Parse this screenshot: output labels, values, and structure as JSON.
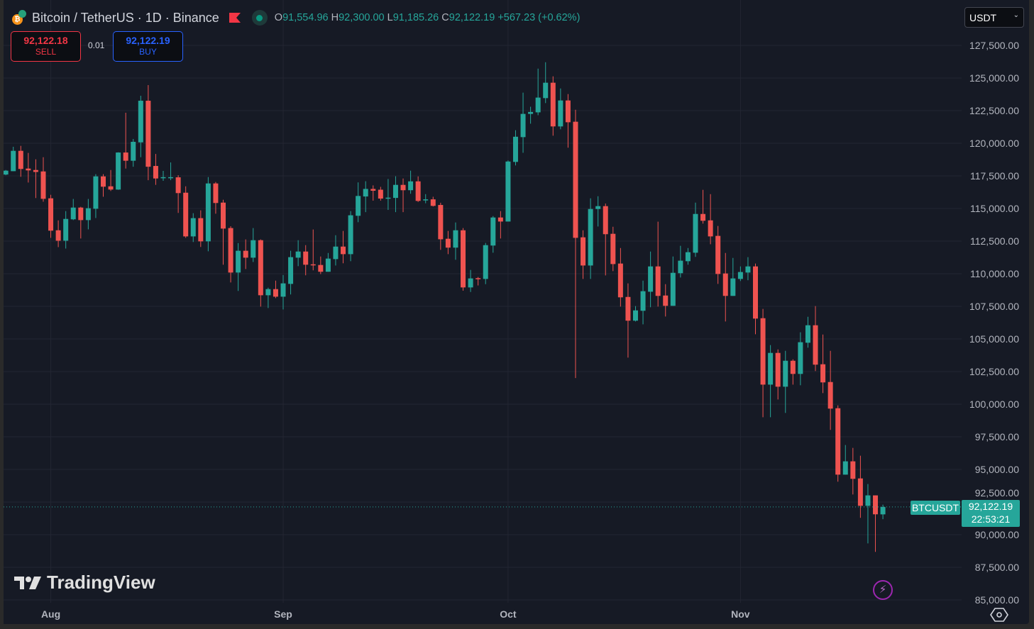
{
  "header": {
    "title": "Bitcoin / TetherUS · 1D · Binance",
    "ohlc": {
      "o_label": "O",
      "o": "91,554.96",
      "h_label": "H",
      "h": "92,300.00",
      "l_label": "L",
      "l": "91,185.26",
      "c_label": "C",
      "c": "92,122.19",
      "change": "+567.23 (+0.62%)"
    }
  },
  "trade": {
    "sell_price": "92,122.18",
    "sell_label": "SELL",
    "spread": "0.01",
    "buy_price": "92,122.19",
    "buy_label": "BUY"
  },
  "currency": {
    "selected": "USDT"
  },
  "price_tag": {
    "symbol": "BTCUSDT",
    "price": "92,122.19",
    "countdown": "22:53:21"
  },
  "branding": {
    "logo_text": "TradingView"
  },
  "colors": {
    "up": "#26a69a",
    "down": "#ef5350",
    "background": "#161a25",
    "grid": "#232632"
  },
  "chart_data": {
    "type": "candlestick",
    "title": "Bitcoin / TetherUS · 1D · Binance",
    "ylabel": "USDT",
    "ylim": [
      84780,
      130980
    ],
    "x_index_range": [
      -0.3,
      127.5
    ],
    "yticks": [
      {
        "value": 127500,
        "label": "127,500.00"
      },
      {
        "value": 125000,
        "label": "125,000.00"
      },
      {
        "value": 122500,
        "label": "122,500.00"
      },
      {
        "value": 120000,
        "label": "120,000.00"
      },
      {
        "value": 117500,
        "label": "117,500.00"
      },
      {
        "value": 115000,
        "label": "115,000.00"
      },
      {
        "value": 112500,
        "label": "112,500.00"
      },
      {
        "value": 110000,
        "label": "110,000.00"
      },
      {
        "value": 107500,
        "label": "107,500.00"
      },
      {
        "value": 105000,
        "label": "105,000.00"
      },
      {
        "value": 102500,
        "label": "102,500.00"
      },
      {
        "value": 100000,
        "label": "100,000.00"
      },
      {
        "value": 97500,
        "label": "97,500.00"
      },
      {
        "value": 95000,
        "label": "95,000.00"
      },
      {
        "value": 92500,
        "label": "92,500.00"
      },
      {
        "value": 90000,
        "label": "90,000.00"
      },
      {
        "value": 87500,
        "label": "87,500.00"
      },
      {
        "value": 85000,
        "label": "85,000.00"
      }
    ],
    "xticks": [
      {
        "index": 6,
        "label": "Aug"
      },
      {
        "index": 37,
        "label": "Sep"
      },
      {
        "index": 67,
        "label": "Oct"
      },
      {
        "index": 98,
        "label": "Nov"
      }
    ],
    "last_price": 92122.19,
    "ohlc_fields": [
      "open",
      "high",
      "low",
      "close"
    ],
    "candles": [
      [
        117600,
        117950,
        117550,
        117900
      ],
      [
        117860,
        119730,
        117860,
        119420
      ],
      [
        119420,
        119800,
        117430,
        118030
      ],
      [
        118060,
        119260,
        116990,
        117920
      ],
      [
        117950,
        118770,
        115800,
        117800
      ],
      [
        117840,
        118930,
        115520,
        115740
      ],
      [
        115780,
        116050,
        112750,
        113300
      ],
      [
        113330,
        114090,
        112040,
        112530
      ],
      [
        112530,
        114800,
        111930,
        114200
      ],
      [
        114170,
        115730,
        114110,
        115070
      ],
      [
        115070,
        115130,
        112700,
        114110
      ],
      [
        114110,
        115730,
        113400,
        115020
      ],
      [
        114980,
        117630,
        114270,
        117460
      ],
      [
        117460,
        117630,
        115900,
        116670
      ],
      [
        116700,
        117950,
        116340,
        116450
      ],
      [
        116450,
        119310,
        116430,
        119290
      ],
      [
        119290,
        122340,
        118060,
        118660
      ],
      [
        118660,
        120330,
        118200,
        120110
      ],
      [
        120070,
        123640,
        118930,
        123260
      ],
      [
        123260,
        124460,
        117170,
        118200
      ],
      [
        118260,
        119180,
        116810,
        117300
      ],
      [
        117350,
        117880,
        117120,
        117400
      ],
      [
        117350,
        118530,
        117170,
        117400
      ],
      [
        117390,
        117550,
        114660,
        116180
      ],
      [
        116210,
        116700,
        112750,
        112860
      ],
      [
        112860,
        114640,
        112430,
        114260
      ],
      [
        114260,
        114860,
        112050,
        112480
      ],
      [
        112480,
        117410,
        111720,
        116920
      ],
      [
        116920,
        117030,
        114600,
        115420
      ],
      [
        115450,
        115670,
        110690,
        113460
      ],
      [
        113500,
        113640,
        109330,
        110090
      ],
      [
        110090,
        112350,
        108680,
        111760
      ],
      [
        111760,
        112630,
        110360,
        111230
      ],
      [
        111230,
        113500,
        110900,
        112570
      ],
      [
        112570,
        112630,
        107480,
        108350
      ],
      [
        108350,
        108930,
        107370,
        108820
      ],
      [
        108820,
        109470,
        108130,
        108240
      ],
      [
        108240,
        109900,
        107260,
        109260
      ],
      [
        109220,
        111760,
        108410,
        111270
      ],
      [
        111230,
        112570,
        110580,
        111700
      ],
      [
        111700,
        112190,
        109880,
        110690
      ],
      [
        110720,
        113390,
        110260,
        110670
      ],
      [
        110670,
        111320,
        109970,
        110150
      ],
      [
        110150,
        111590,
        110150,
        111160
      ],
      [
        111120,
        112950,
        110630,
        112080
      ],
      [
        112080,
        113280,
        110800,
        111500
      ],
      [
        111500,
        114800,
        110960,
        114480
      ],
      [
        114440,
        117000,
        113950,
        115960
      ],
      [
        115920,
        117090,
        114720,
        116500
      ],
      [
        116500,
        116770,
        115600,
        116360
      ],
      [
        116440,
        116660,
        115600,
        115760
      ],
      [
        115780,
        117260,
        114890,
        115830
      ],
      [
        115810,
        117470,
        114720,
        116810
      ],
      [
        116810,
        117300,
        114720,
        116400
      ],
      [
        116400,
        117900,
        116130,
        117080
      ],
      [
        117080,
        117460,
        115500,
        115580
      ],
      [
        115620,
        116100,
        115400,
        115700
      ],
      [
        115700,
        115900,
        115150,
        115200
      ],
      [
        115270,
        115440,
        111830,
        112640
      ],
      [
        112680,
        113280,
        111500,
        112000
      ],
      [
        112000,
        113930,
        111070,
        113330
      ],
      [
        113330,
        113500,
        108700,
        108950
      ],
      [
        108950,
        110290,
        108600,
        109640
      ],
      [
        109660,
        109750,
        109100,
        109600
      ],
      [
        109600,
        112360,
        109200,
        112190
      ],
      [
        112160,
        114420,
        111610,
        114310
      ],
      [
        114310,
        114800,
        112700,
        114000
      ],
      [
        114000,
        118680,
        114000,
        118600
      ],
      [
        118570,
        121000,
        118300,
        120500
      ],
      [
        120470,
        123880,
        119270,
        122250
      ],
      [
        122250,
        122800,
        121500,
        122400
      ],
      [
        122370,
        125720,
        122150,
        123500
      ],
      [
        123460,
        126210,
        123080,
        124640
      ],
      [
        124640,
        125130,
        120580,
        121290
      ],
      [
        121290,
        124200,
        121070,
        123280
      ],
      [
        123280,
        123770,
        119660,
        121610
      ],
      [
        121650,
        122570,
        102000,
        112750
      ],
      [
        112790,
        113330,
        109600,
        110630
      ],
      [
        110630,
        115780,
        109600,
        114960
      ],
      [
        114960,
        115940,
        113620,
        115180
      ],
      [
        115180,
        115380,
        109870,
        113030
      ],
      [
        113060,
        113600,
        110200,
        110740
      ],
      [
        110780,
        111970,
        107480,
        108190
      ],
      [
        108220,
        109260,
        103570,
        106400
      ],
      [
        106400,
        107520,
        106340,
        107190
      ],
      [
        107160,
        109470,
        106120,
        108660
      ],
      [
        108620,
        111700,
        107430,
        110560
      ],
      [
        110560,
        113990,
        107480,
        108300
      ],
      [
        108330,
        109200,
        106720,
        107540
      ],
      [
        107540,
        111320,
        107540,
        110070
      ],
      [
        110040,
        112140,
        109710,
        111000
      ],
      [
        110960,
        111970,
        110690,
        111650
      ],
      [
        111610,
        115450,
        111290,
        114580
      ],
      [
        114580,
        116430,
        113840,
        114060
      ],
      [
        114090,
        116100,
        112260,
        112860
      ],
      [
        112900,
        113660,
        109220,
        109980
      ],
      [
        110020,
        111590,
        106340,
        108300
      ],
      [
        108300,
        111210,
        108300,
        109640
      ],
      [
        109600,
        110560,
        109440,
        110130
      ],
      [
        110090,
        111270,
        109500,
        110560
      ],
      [
        110560,
        110780,
        105360,
        106560
      ],
      [
        106590,
        107300,
        99000,
        101500
      ],
      [
        101500,
        104530,
        99000,
        103930
      ],
      [
        103930,
        104200,
        100360,
        101340
      ],
      [
        101340,
        104090,
        99330,
        103330
      ],
      [
        103330,
        103440,
        101500,
        102320
      ],
      [
        102320,
        105510,
        101450,
        104750
      ],
      [
        104710,
        106700,
        104330,
        106050
      ],
      [
        106050,
        107520,
        102540,
        103030
      ],
      [
        103060,
        105340,
        100850,
        101670
      ],
      [
        101700,
        104090,
        98030,
        99660
      ],
      [
        99690,
        99910,
        94060,
        94600
      ],
      [
        94600,
        96870,
        94600,
        95620
      ],
      [
        95620,
        96650,
        93080,
        94280
      ],
      [
        94310,
        96050,
        91290,
        92210
      ],
      [
        92210,
        93880,
        89330,
        93010
      ],
      [
        93010,
        93010,
        88680,
        91560
      ],
      [
        91554.96,
        92300,
        91185.26,
        92122.19
      ]
    ]
  }
}
